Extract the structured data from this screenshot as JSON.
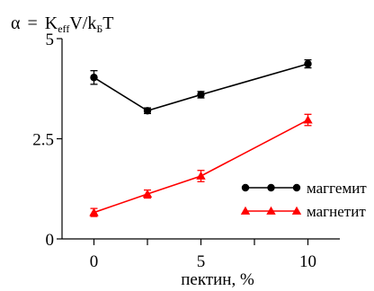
{
  "chart_data": {
    "type": "line",
    "title": "",
    "xlabel": "пектин, %",
    "ylabel": {
      "symbol": "α",
      "equals": "=",
      "k": "K",
      "k_sub": "eff",
      "v": "V/k",
      "b_sub": "Б",
      "t": "T"
    },
    "xlim": [
      -2,
      11
    ],
    "ylim": [
      0,
      5
    ],
    "x_ticks": [
      0,
      5,
      10
    ],
    "x_minor_ticks": [
      2.5,
      7.5
    ],
    "x_tick_labels": [
      "0",
      "5",
      "10"
    ],
    "y_ticks": [
      0,
      2.5,
      5
    ],
    "y_tick_labels": [
      "0",
      "2.5",
      "5"
    ],
    "grid": false,
    "legend_position": "right",
    "series": [
      {
        "name": "маггемит",
        "color": "#000000",
        "marker": "circle",
        "x": [
          0,
          2.5,
          5,
          10
        ],
        "y": [
          4.03,
          3.2,
          3.6,
          4.37
        ],
        "err": [
          0.17,
          0.07,
          0.08,
          0.1
        ]
      },
      {
        "name": "магнетит",
        "color": "#ff0000",
        "marker": "triangle",
        "x": [
          0,
          2.5,
          5,
          10
        ],
        "y": [
          0.66,
          1.12,
          1.57,
          2.97
        ],
        "err": [
          0.1,
          0.1,
          0.14,
          0.14
        ]
      }
    ]
  }
}
